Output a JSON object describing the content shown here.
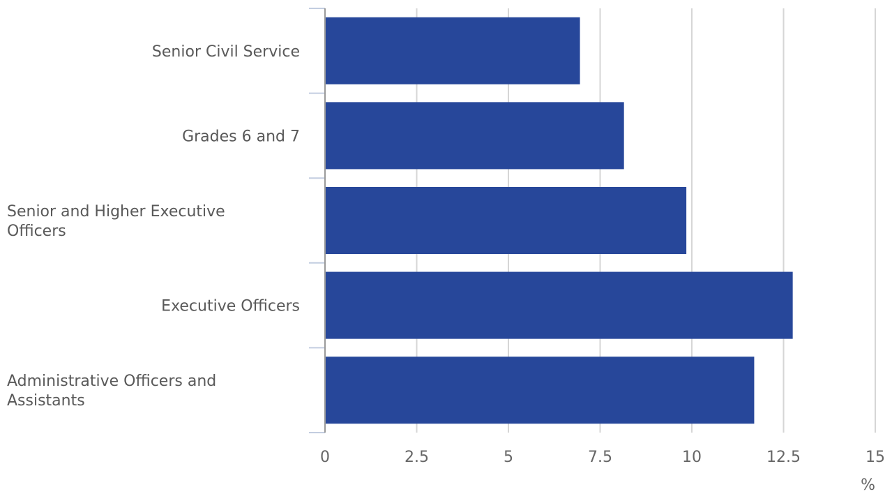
{
  "chart_data": {
    "type": "bar",
    "orientation": "horizontal",
    "categories": [
      [
        "Senior Civil Service"
      ],
      [
        "Grades 6 and 7"
      ],
      [
        "Senior and Higher Executive",
        "Officers"
      ],
      [
        "Executive Officers"
      ],
      [
        "Administrative Officers and",
        "Assistants"
      ]
    ],
    "values": [
      6.95,
      8.15,
      9.85,
      12.75,
      11.7
    ],
    "xlim": [
      0,
      15
    ],
    "x_ticks": [
      "0",
      "2.5",
      "5",
      "7.5",
      "10",
      "12.5",
      "15"
    ],
    "xlabel": "%",
    "grid": true,
    "bar_color": "#27479a"
  }
}
